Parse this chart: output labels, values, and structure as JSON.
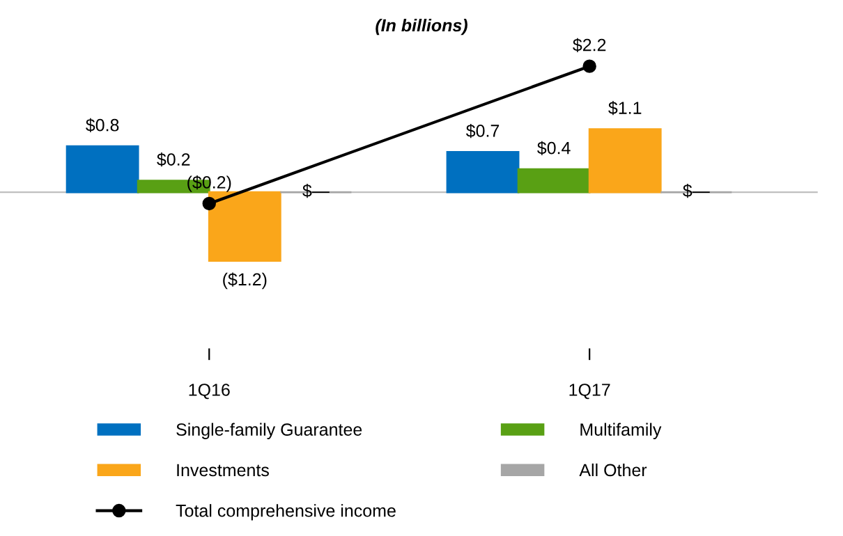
{
  "chart_data": {
    "type": "bar",
    "title": "(In billions)",
    "categories": [
      "1Q16",
      "1Q17"
    ],
    "series": [
      {
        "name": "Single-family Guarantee",
        "color": "#0070c0",
        "values": [
          0.8,
          0.7
        ],
        "value_labels": [
          "$0.8",
          "$0.7"
        ]
      },
      {
        "name": "Multifamily",
        "color": "#59a014",
        "values": [
          0.2,
          0.4
        ],
        "value_labels": [
          "$0.2",
          "$0.4"
        ]
      },
      {
        "name": "Investments",
        "color": "#faa61a",
        "values": [
          -1.2,
          1.1
        ],
        "value_labels": [
          "($1.2)",
          "$1.1"
        ]
      },
      {
        "name": "All Other",
        "color": "#a6a6a6",
        "values": [
          0,
          0
        ],
        "value_labels": [
          "$—",
          "$—"
        ]
      },
      {
        "name": "Total comprehensive income",
        "type": "line",
        "color": "#000000",
        "marker": "circle",
        "values": [
          -0.2,
          2.2
        ],
        "value_labels": [
          "($0.2)",
          "$2.2"
        ]
      }
    ],
    "legend": "bottom",
    "grid": false
  }
}
